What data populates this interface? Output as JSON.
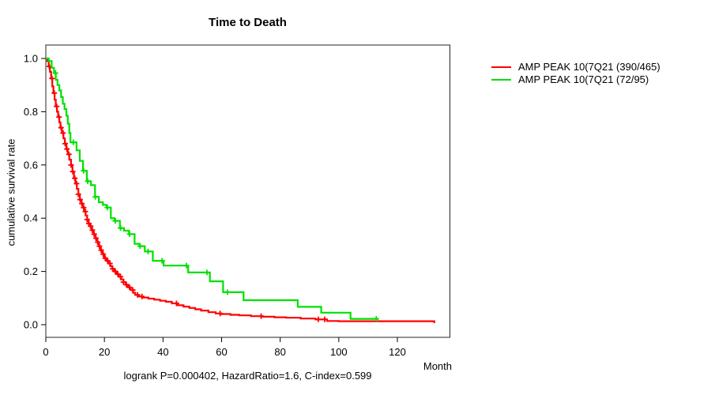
{
  "figure": {
    "title": "Time to Death",
    "y_axis_label": "cumulative survival rate",
    "x_axis_label": "Month",
    "footer": "logrank P=0.000402, HazardRatio=1.6, C-index=0.599"
  },
  "legend": {
    "items": [
      {
        "label": "AMP PEAK 10(7Q21 (390/465)",
        "color": "#ff0000"
      },
      {
        "label": "AMP PEAK 10(7Q21 (72/95)",
        "color": "#00e100"
      }
    ]
  },
  "chart_data": {
    "type": "line",
    "subtype": "kaplan-meier-step",
    "title": "Time to Death",
    "xlabel": "Month",
    "ylabel": "cumulative survival rate",
    "xlim": [
      0,
      138
    ],
    "ylim": [
      0,
      1.0
    ],
    "x_ticks": [
      0,
      20,
      40,
      60,
      80,
      100,
      120
    ],
    "y_ticks": [
      "0.0",
      "0.2",
      "0.4",
      "0.6",
      "0.8",
      "1.0"
    ],
    "grid": false,
    "legend_position": "right-outside",
    "annotation": "logrank P=0.000402, HazardRatio=1.6, C-index=0.599",
    "series": [
      {
        "name": "AMP PEAK 10(7Q21 (390/465)",
        "color": "#ff0000",
        "points": [
          [
            0,
            1.0
          ],
          [
            0.5,
            0.99
          ],
          [
            1,
            0.97
          ],
          [
            1.4,
            0.95
          ],
          [
            1.8,
            0.925
          ],
          [
            2.2,
            0.895
          ],
          [
            2.6,
            0.87
          ],
          [
            3,
            0.845
          ],
          [
            3.4,
            0.82
          ],
          [
            3.8,
            0.8
          ],
          [
            4.2,
            0.78
          ],
          [
            4.6,
            0.76
          ],
          [
            5,
            0.74
          ],
          [
            5.5,
            0.72
          ],
          [
            6,
            0.7
          ],
          [
            6.5,
            0.68
          ],
          [
            7,
            0.66
          ],
          [
            7.5,
            0.64
          ],
          [
            8,
            0.62
          ],
          [
            8.6,
            0.6
          ],
          [
            9.1,
            0.575
          ],
          [
            9.6,
            0.55
          ],
          [
            10.1,
            0.53
          ],
          [
            10.6,
            0.51
          ],
          [
            11.1,
            0.49
          ],
          [
            11.6,
            0.47
          ],
          [
            12.1,
            0.455
          ],
          [
            12.6,
            0.44
          ],
          [
            13.1,
            0.425
          ],
          [
            13.6,
            0.41
          ],
          [
            14.1,
            0.395
          ],
          [
            14.6,
            0.38
          ],
          [
            15.1,
            0.37
          ],
          [
            15.7,
            0.355
          ],
          [
            16.3,
            0.34
          ],
          [
            16.9,
            0.325
          ],
          [
            17.5,
            0.31
          ],
          [
            18.1,
            0.295
          ],
          [
            18.7,
            0.28
          ],
          [
            19.3,
            0.265
          ],
          [
            19.9,
            0.25
          ],
          [
            20.6,
            0.24
          ],
          [
            21.3,
            0.23
          ],
          [
            22,
            0.22
          ],
          [
            22.7,
            0.21
          ],
          [
            23.4,
            0.2
          ],
          [
            24.1,
            0.19
          ],
          [
            24.9,
            0.18
          ],
          [
            25.7,
            0.17
          ],
          [
            26.5,
            0.16
          ],
          [
            27.3,
            0.15
          ],
          [
            28.1,
            0.14
          ],
          [
            29,
            0.13
          ],
          [
            29.8,
            0.12
          ],
          [
            30.5,
            0.112
          ],
          [
            31.5,
            0.106
          ],
          [
            33,
            0.102
          ],
          [
            35,
            0.098
          ],
          [
            37,
            0.094
          ],
          [
            39,
            0.09
          ],
          [
            41,
            0.086
          ],
          [
            43,
            0.08
          ],
          [
            45,
            0.073
          ],
          [
            47,
            0.068
          ],
          [
            49,
            0.063
          ],
          [
            51,
            0.058
          ],
          [
            53,
            0.053
          ],
          [
            55.5,
            0.047
          ],
          [
            58,
            0.042
          ],
          [
            60,
            0.04
          ],
          [
            63,
            0.037
          ],
          [
            66,
            0.035
          ],
          [
            70,
            0.032
          ],
          [
            74,
            0.03
          ],
          [
            78,
            0.028
          ],
          [
            82,
            0.026
          ],
          [
            87,
            0.023
          ],
          [
            92,
            0.02
          ],
          [
            96,
            0.014
          ],
          [
            100,
            0.013
          ],
          [
            132,
            0.013
          ],
          [
            132.6,
            0.006
          ]
        ],
        "censor_months": [
          1.2,
          2.1,
          2.9,
          3.7,
          4.5,
          5.2,
          5.9,
          6.6,
          7.2,
          7.9,
          8.6,
          9.2,
          9.9,
          10.5,
          11.1,
          11.7,
          12.3,
          12.9,
          13.5,
          14.1,
          14.7,
          15.3,
          15.9,
          16.5,
          17.1,
          17.7,
          18.3,
          18.9,
          19.6,
          20.3,
          21.1,
          21.9,
          22.8,
          23.7,
          24.6,
          25.5,
          26.5,
          27.5,
          28.6,
          29.7,
          31.3,
          32.8,
          44.6,
          59.5,
          73.5,
          93,
          95.2
        ]
      },
      {
        "name": "AMP PEAK 10(7Q21 (72/95)",
        "color": "#00e100",
        "points": [
          [
            0,
            1.0
          ],
          [
            1,
            0.99
          ],
          [
            2,
            0.965
          ],
          [
            2.8,
            0.945
          ],
          [
            3.4,
            0.92
          ],
          [
            4,
            0.9
          ],
          [
            4.6,
            0.88
          ],
          [
            5.2,
            0.855
          ],
          [
            5.8,
            0.83
          ],
          [
            6.4,
            0.81
          ],
          [
            7,
            0.785
          ],
          [
            7.5,
            0.755
          ],
          [
            8,
            0.72
          ],
          [
            8.4,
            0.685
          ],
          [
            10.5,
            0.655
          ],
          [
            11.6,
            0.615
          ],
          [
            12.7,
            0.578
          ],
          [
            14,
            0.539
          ],
          [
            15.4,
            0.524
          ],
          [
            16.8,
            0.48
          ],
          [
            18.1,
            0.46
          ],
          [
            19.5,
            0.45
          ],
          [
            20.8,
            0.44
          ],
          [
            22.2,
            0.4
          ],
          [
            23.5,
            0.39
          ],
          [
            25.3,
            0.363
          ],
          [
            26.7,
            0.353
          ],
          [
            28.4,
            0.34
          ],
          [
            30.3,
            0.304
          ],
          [
            32,
            0.295
          ],
          [
            33.8,
            0.275
          ],
          [
            36.5,
            0.24
          ],
          [
            40.2,
            0.222
          ],
          [
            48.6,
            0.196
          ],
          [
            56,
            0.163
          ],
          [
            60.5,
            0.122
          ],
          [
            67.5,
            0.092
          ],
          [
            86,
            0.067
          ],
          [
            94,
            0.045
          ],
          [
            104,
            0.022
          ],
          [
            113.5,
            0.022
          ]
        ],
        "censor_months": [
          3.3,
          9.4,
          12.9,
          14.3,
          16.9,
          21,
          23.7,
          25.5,
          28.6,
          32.2,
          34.9,
          39.7,
          48,
          55,
          62,
          112.8
        ]
      }
    ]
  }
}
